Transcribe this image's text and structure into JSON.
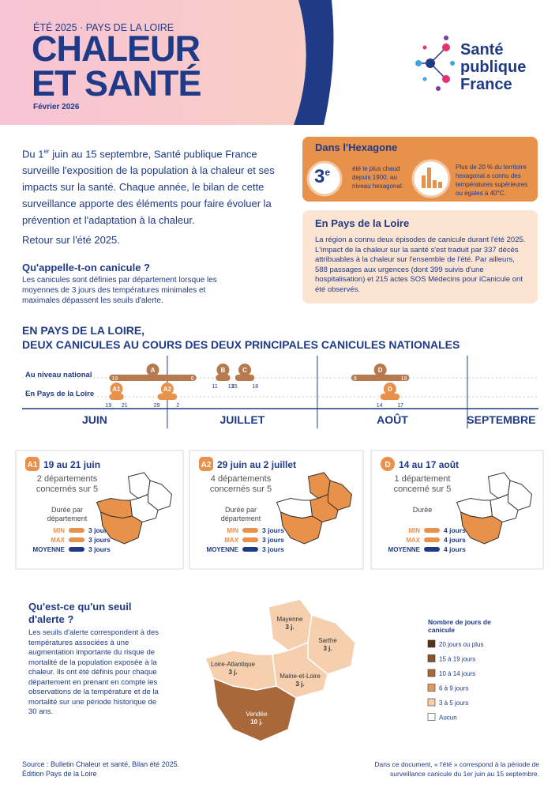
{
  "header": {
    "kicker": "ÉTÉ 2025 · PAYS DE LA LOIRE",
    "title_line1": "CHALEUR",
    "title_line2": "ET SANTÉ",
    "date": "Février 2026"
  },
  "logo": [
    "Santé",
    "publique",
    "France"
  ],
  "intro": {
    "text_before": "Du 1",
    "sup": "er",
    "text_after": "juin au 15 septembre, Santé publique France surveille l'exposition de la population à la chaleur et ses impacts sur la santé. Chaque année, le bilan de cette surveillance apporte des éléments pour faire évoluer la prévention et l'adaptation à la chaleur.",
    "recap": "Retour sur l'été 2025."
  },
  "definition": {
    "title": "Qu'appelle-t-on canicule ?",
    "text": "Les canicules sont définies par département lorsque les moyennes de 3 jours des températures minimales et maximales dépassent les seuils d'alerte."
  },
  "hexagone": {
    "title": "Dans l'Hexagone",
    "rank": "3",
    "rank_sup": "e",
    "rank_text": "été le plus chaud depuis 1900, au niveau hexagonal.",
    "territory_text": "Plus de 20 % du territoire hexagonal a connu des températures supérieures ou égales à 40°C."
  },
  "region": {
    "title": "En Pays de la Loire",
    "text": "La région a connu deux épisodes de canicule durant l'été 2025. L'impact de la chaleur sur la santé s'est traduit par 337 décès attribuables à la chaleur sur l'ensemble de l'été. Par ailleurs, 588 passages aux urgences (dont 399 suivis d'une hospitalisation) et 215 actes SOS Médecins pour iCanicule ont été observés."
  },
  "timeline": {
    "title_line1": "EN PAYS DE LA LOIRE,",
    "title_line2": "DEUX CANICULES AU COURS DES DEUX PRINCIPALES CANICULES NATIONALES",
    "rows": [
      "Au niveau national",
      "En Pays de la Loire"
    ],
    "months": [
      "JUIN",
      "JUILLET",
      "AOÛT",
      "SEPTEMBRE"
    ],
    "national": [
      {
        "label": "A",
        "start": 19,
        "end": 6
      },
      {
        "label": "B",
        "start": 11,
        "end": 13
      },
      {
        "label": "C",
        "start": 15,
        "end": 18
      },
      {
        "label": "D",
        "start": 8,
        "end": 19
      }
    ],
    "regional": [
      {
        "label": "A1",
        "start": 19,
        "end": 21
      },
      {
        "label": "A2",
        "start": 29,
        "end": 2
      },
      {
        "label": "D",
        "start": 14,
        "end": 17
      }
    ]
  },
  "episodes": [
    {
      "badge": "A1",
      "dates": "19 au 21 juin",
      "count": "2 départements",
      "of": "concernés sur 5",
      "duration_label": "Durée par département",
      "stats": [
        {
          "label": "MIN",
          "value": "3 jours"
        },
        {
          "label": "MAX",
          "value": "3 jours"
        },
        {
          "label": "MOYENNE",
          "value": "3 jours"
        }
      ]
    },
    {
      "badge": "A2",
      "dates": "29 juin au 2 juillet",
      "count": "4 départements",
      "of": "concernés sur 5",
      "duration_label": "Durée par département",
      "stats": [
        {
          "label": "MIN",
          "value": "3 jours"
        },
        {
          "label": "MAX",
          "value": "3 jours"
        },
        {
          "label": "MOYENNE",
          "value": "3 jours"
        }
      ]
    },
    {
      "badge": "D",
      "dates": "14 au 17 août",
      "count": "1 département",
      "of": "concerné sur 5",
      "duration_label": "Durée",
      "stats": [
        {
          "label": "MIN",
          "value": "4 jours"
        },
        {
          "label": "MAX",
          "value": "4 jours"
        },
        {
          "label": "MOYENNE",
          "value": "4 jours"
        }
      ]
    }
  ],
  "alert": {
    "title": "Qu'est-ce qu'un seuil d'alerte ?",
    "text": "Les seuils d'alerte correspondent à des températures associées à une augmentation importante du risque de mortalité de la population exposée à la chaleur. Ils ont été définis pour chaque département en prenant en compte les observations de la température et de la mortalité sur une période historique de 30 ans."
  },
  "map": {
    "departments": [
      {
        "name": "Mayenne",
        "days": "3 j."
      },
      {
        "name": "Sarthe",
        "days": "3 j."
      },
      {
        "name": "Loire-Atlantique",
        "days": "3 j."
      },
      {
        "name": "Maine-et-Loire",
        "days": "3 j."
      },
      {
        "name": "Vendée",
        "days": "10 j."
      }
    ],
    "legend_title": "Nombre de jours de canicule",
    "legend": [
      "20 jours ou plus",
      "15 à 19 jours",
      "10 à 14 jours",
      "6 à 9 jours",
      "3 à 5 jours",
      "Aucun"
    ]
  },
  "footer": {
    "source": "Source : Bulletin Chaleur et santé, Bilan été 2025.",
    "edition": "Édition Pays de la Loire",
    "note": "Dans ce document, « l'été » correspond à la période de surveillance canicule du 1er juin au 15 septembre."
  }
}
